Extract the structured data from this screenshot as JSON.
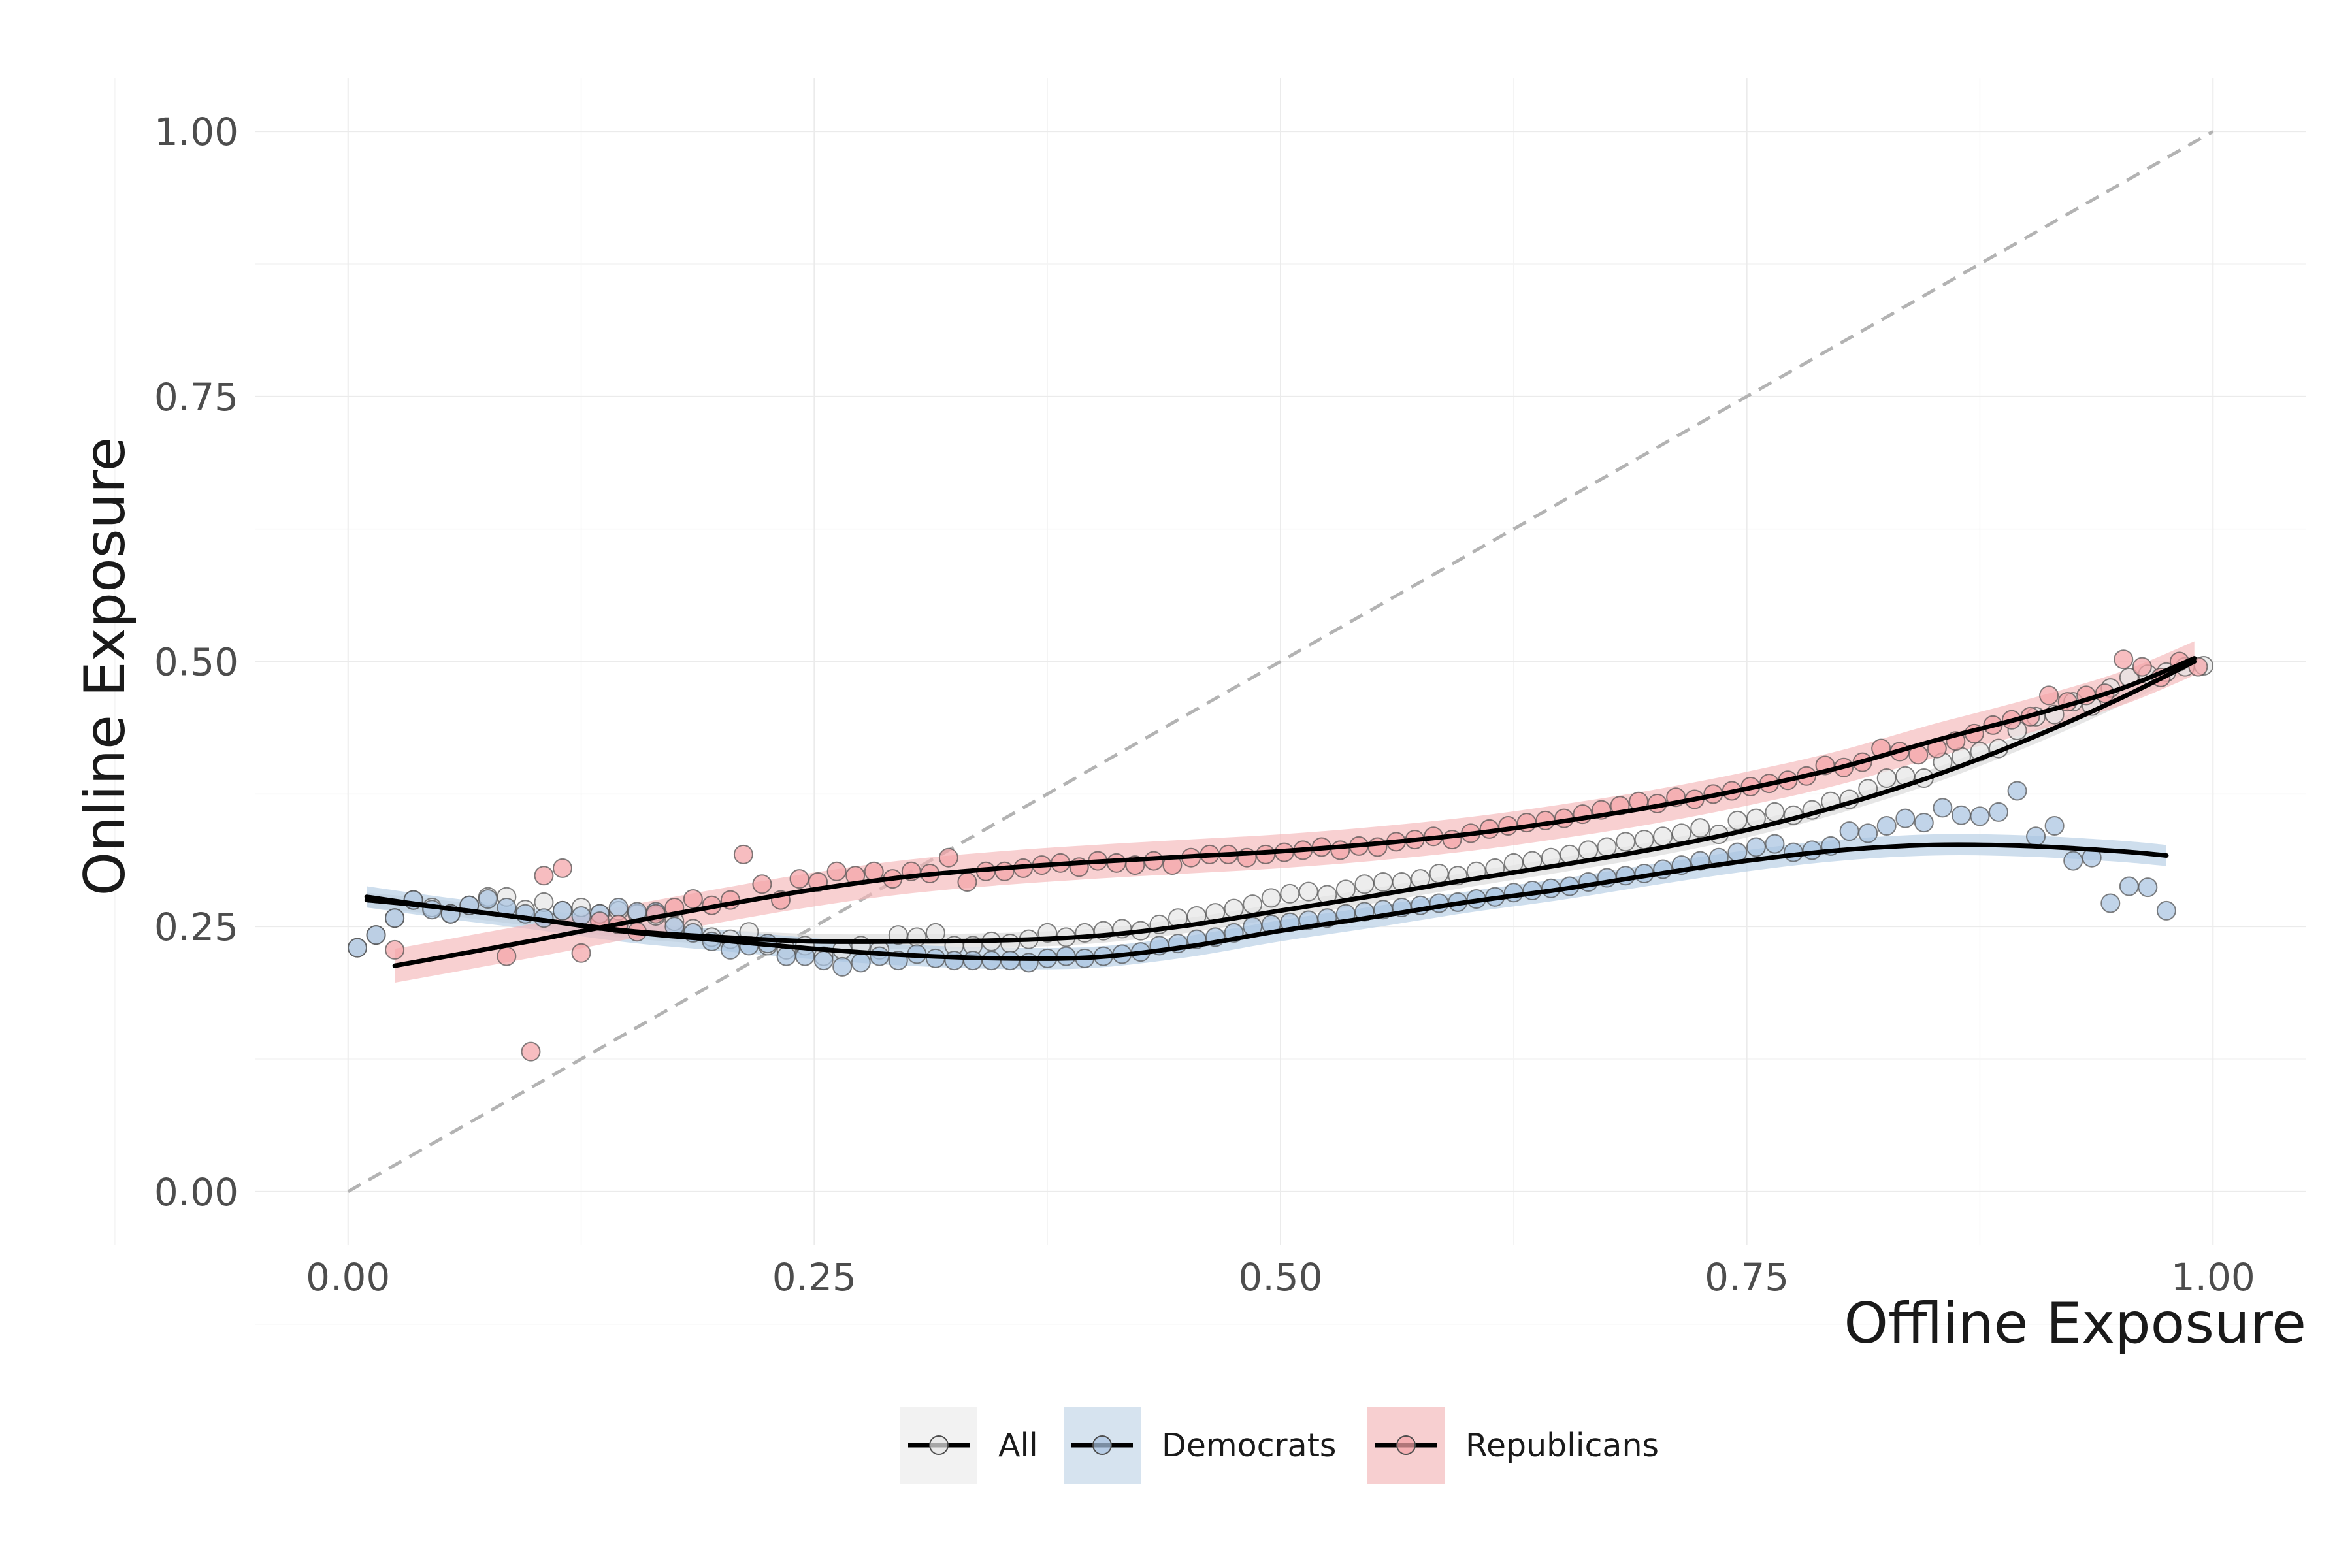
{
  "chart_data": {
    "type": "scatter",
    "xlabel": "Offline Exposure",
    "ylabel": "Online Exposure",
    "xlim": [
      -0.05,
      1.05
    ],
    "ylim": [
      -0.05,
      1.05
    ],
    "x_ticks": [
      "0.00",
      "0.25",
      "0.50",
      "0.75",
      "1.00"
    ],
    "y_ticks": [
      "0.00",
      "0.25",
      "0.50",
      "0.75",
      "1.00"
    ],
    "grid": true,
    "legend_position": "bottom",
    "reference_line": {
      "type": "diagonal",
      "style": "dashed",
      "color": "#b3b3b3",
      "from": [
        0,
        0
      ],
      "to": [
        1,
        1
      ]
    },
    "series": [
      {
        "name": "All",
        "fill": "#e6e6e6",
        "legend_bg": "#f2f2f2",
        "band": "#d9d9d9",
        "x": [
          0.005,
          0.015,
          0.025,
          0.035,
          0.045,
          0.055,
          0.065,
          0.075,
          0.085,
          0.095,
          0.105,
          0.115,
          0.125,
          0.135,
          0.145,
          0.155,
          0.165,
          0.175,
          0.185,
          0.195,
          0.205,
          0.215,
          0.225,
          0.235,
          0.245,
          0.255,
          0.265,
          0.275,
          0.285,
          0.295,
          0.305,
          0.315,
          0.325,
          0.335,
          0.345,
          0.355,
          0.365,
          0.375,
          0.385,
          0.395,
          0.405,
          0.415,
          0.425,
          0.435,
          0.445,
          0.455,
          0.465,
          0.475,
          0.485,
          0.495,
          0.505,
          0.515,
          0.525,
          0.535,
          0.545,
          0.555,
          0.565,
          0.575,
          0.585,
          0.595,
          0.605,
          0.615,
          0.625,
          0.635,
          0.645,
          0.655,
          0.665,
          0.675,
          0.685,
          0.695,
          0.705,
          0.715,
          0.725,
          0.735,
          0.745,
          0.755,
          0.765,
          0.775,
          0.785,
          0.795,
          0.805,
          0.815,
          0.825,
          0.835,
          0.845,
          0.855,
          0.865,
          0.875,
          0.885,
          0.895,
          0.905,
          0.915,
          0.925,
          0.935,
          0.945,
          0.955,
          0.965,
          0.975,
          0.985,
          0.995
        ],
        "y": [
          0.23,
          0.242,
          0.258,
          0.275,
          0.268,
          0.262,
          0.27,
          0.278,
          0.278,
          0.266,
          0.273,
          0.265,
          0.268,
          0.262,
          0.265,
          0.262,
          0.26,
          0.255,
          0.248,
          0.24,
          0.238,
          0.245,
          0.232,
          0.228,
          0.232,
          0.222,
          0.228,
          0.232,
          0.228,
          0.242,
          0.24,
          0.244,
          0.232,
          0.232,
          0.236,
          0.234,
          0.238,
          0.244,
          0.24,
          0.244,
          0.246,
          0.248,
          0.246,
          0.252,
          0.258,
          0.26,
          0.263,
          0.267,
          0.271,
          0.277,
          0.281,
          0.283,
          0.28,
          0.285,
          0.29,
          0.292,
          0.292,
          0.295,
          0.3,
          0.298,
          0.302,
          0.305,
          0.31,
          0.312,
          0.315,
          0.318,
          0.322,
          0.325,
          0.33,
          0.332,
          0.335,
          0.338,
          0.343,
          0.337,
          0.35,
          0.352,
          0.358,
          0.355,
          0.36,
          0.368,
          0.37,
          0.38,
          0.39,
          0.392,
          0.39,
          0.405,
          0.41,
          0.415,
          0.418,
          0.435,
          0.448,
          0.45,
          0.462,
          0.458,
          0.475,
          0.485,
          0.488,
          0.49,
          0.495,
          0.496
        ],
        "fit_x": [
          0.01,
          0.05,
          0.1,
          0.15,
          0.2,
          0.25,
          0.3,
          0.35,
          0.4,
          0.45,
          0.5,
          0.55,
          0.6,
          0.65,
          0.7,
          0.75,
          0.8,
          0.85,
          0.9,
          0.95,
          0.99
        ],
        "fit_y": [
          0.275,
          0.268,
          0.257,
          0.246,
          0.24,
          0.236,
          0.236,
          0.237,
          0.241,
          0.251,
          0.265,
          0.279,
          0.294,
          0.308,
          0.323,
          0.341,
          0.364,
          0.392,
          0.426,
          0.465,
          0.5
        ],
        "band_width": 0.007
      },
      {
        "name": "Democrats",
        "fill": "#a9c4e0",
        "legend_bg": "#d6e3ef",
        "band": "#b3cde3",
        "x": [
          0.005,
          0.015,
          0.025,
          0.035,
          0.045,
          0.055,
          0.065,
          0.075,
          0.085,
          0.095,
          0.105,
          0.115,
          0.125,
          0.135,
          0.145,
          0.155,
          0.165,
          0.175,
          0.185,
          0.195,
          0.205,
          0.215,
          0.225,
          0.235,
          0.245,
          0.255,
          0.265,
          0.275,
          0.285,
          0.295,
          0.305,
          0.315,
          0.325,
          0.335,
          0.345,
          0.355,
          0.365,
          0.375,
          0.385,
          0.395,
          0.405,
          0.415,
          0.425,
          0.435,
          0.445,
          0.455,
          0.465,
          0.475,
          0.485,
          0.495,
          0.505,
          0.515,
          0.525,
          0.535,
          0.545,
          0.555,
          0.565,
          0.575,
          0.585,
          0.595,
          0.605,
          0.615,
          0.625,
          0.635,
          0.645,
          0.655,
          0.665,
          0.675,
          0.685,
          0.695,
          0.705,
          0.715,
          0.725,
          0.735,
          0.745,
          0.755,
          0.765,
          0.775,
          0.785,
          0.795,
          0.805,
          0.815,
          0.825,
          0.835,
          0.845,
          0.855,
          0.865,
          0.875,
          0.885,
          0.895,
          0.905,
          0.915,
          0.925,
          0.935,
          0.945,
          0.955,
          0.965,
          0.975
        ],
        "y": [
          0.23,
          0.242,
          0.258,
          0.275,
          0.266,
          0.262,
          0.27,
          0.276,
          0.268,
          0.262,
          0.258,
          0.265,
          0.26,
          0.262,
          0.268,
          0.264,
          0.264,
          0.25,
          0.244,
          0.236,
          0.228,
          0.232,
          0.234,
          0.222,
          0.222,
          0.218,
          0.212,
          0.216,
          0.222,
          0.218,
          0.224,
          0.22,
          0.218,
          0.218,
          0.218,
          0.218,
          0.216,
          0.22,
          0.222,
          0.22,
          0.222,
          0.224,
          0.226,
          0.232,
          0.234,
          0.238,
          0.24,
          0.244,
          0.25,
          0.252,
          0.254,
          0.256,
          0.258,
          0.262,
          0.264,
          0.266,
          0.268,
          0.27,
          0.272,
          0.273,
          0.276,
          0.278,
          0.282,
          0.284,
          0.286,
          0.288,
          0.292,
          0.296,
          0.298,
          0.3,
          0.304,
          0.308,
          0.312,
          0.315,
          0.32,
          0.325,
          0.328,
          0.32,
          0.322,
          0.326,
          0.34,
          0.338,
          0.345,
          0.352,
          0.348,
          0.362,
          0.355,
          0.354,
          0.358,
          0.378,
          0.335,
          0.345,
          0.312,
          0.315,
          0.272,
          0.288,
          0.287,
          0.265
        ],
        "fit_x": [
          0.01,
          0.05,
          0.1,
          0.15,
          0.2,
          0.25,
          0.3,
          0.35,
          0.4,
          0.45,
          0.5,
          0.55,
          0.6,
          0.65,
          0.7,
          0.75,
          0.8,
          0.85,
          0.9,
          0.95,
          0.975
        ],
        "fit_y": [
          0.278,
          0.268,
          0.257,
          0.245,
          0.237,
          0.229,
          0.223,
          0.22,
          0.221,
          0.231,
          0.246,
          0.259,
          0.273,
          0.285,
          0.299,
          0.312,
          0.322,
          0.327,
          0.326,
          0.321,
          0.317
        ],
        "band_width": 0.01
      },
      {
        "name": "Republicans",
        "fill": "#f4a3a8",
        "legend_bg": "#f7cfd0",
        "band": "#f5b7b9",
        "x": [
          0.025,
          0.085,
          0.098,
          0.105,
          0.115,
          0.125,
          0.135,
          0.145,
          0.155,
          0.165,
          0.175,
          0.185,
          0.195,
          0.205,
          0.212,
          0.222,
          0.232,
          0.242,
          0.252,
          0.262,
          0.272,
          0.282,
          0.292,
          0.302,
          0.312,
          0.322,
          0.332,
          0.342,
          0.352,
          0.362,
          0.372,
          0.382,
          0.392,
          0.402,
          0.412,
          0.422,
          0.432,
          0.442,
          0.452,
          0.462,
          0.472,
          0.482,
          0.492,
          0.502,
          0.512,
          0.522,
          0.532,
          0.542,
          0.552,
          0.562,
          0.572,
          0.582,
          0.592,
          0.602,
          0.612,
          0.622,
          0.632,
          0.642,
          0.652,
          0.662,
          0.672,
          0.682,
          0.692,
          0.702,
          0.712,
          0.722,
          0.732,
          0.742,
          0.752,
          0.762,
          0.772,
          0.782,
          0.792,
          0.802,
          0.812,
          0.822,
          0.832,
          0.842,
          0.852,
          0.862,
          0.872,
          0.882,
          0.892,
          0.902,
          0.912,
          0.922,
          0.932,
          0.942,
          0.952,
          0.962,
          0.972,
          0.982,
          0.992
        ],
        "y": [
          0.228,
          0.222,
          0.132,
          0.298,
          0.305,
          0.225,
          0.255,
          0.252,
          0.245,
          0.262,
          0.268,
          0.276,
          0.27,
          0.275,
          0.318,
          0.29,
          0.275,
          0.295,
          0.292,
          0.302,
          0.298,
          0.302,
          0.295,
          0.302,
          0.3,
          0.315,
          0.292,
          0.302,
          0.302,
          0.305,
          0.308,
          0.31,
          0.306,
          0.312,
          0.31,
          0.308,
          0.312,
          0.308,
          0.315,
          0.318,
          0.318,
          0.315,
          0.318,
          0.32,
          0.322,
          0.325,
          0.322,
          0.326,
          0.325,
          0.33,
          0.332,
          0.335,
          0.332,
          0.338,
          0.342,
          0.345,
          0.348,
          0.35,
          0.352,
          0.356,
          0.36,
          0.364,
          0.368,
          0.366,
          0.372,
          0.37,
          0.375,
          0.378,
          0.382,
          0.385,
          0.388,
          0.392,
          0.402,
          0.4,
          0.405,
          0.418,
          0.415,
          0.412,
          0.418,
          0.425,
          0.432,
          0.44,
          0.445,
          0.448,
          0.468,
          0.462,
          0.468,
          0.47,
          0.502,
          0.495,
          0.485,
          0.5,
          0.495
        ],
        "fit_x": [
          0.025,
          0.1,
          0.15,
          0.2,
          0.25,
          0.3,
          0.35,
          0.4,
          0.45,
          0.5,
          0.55,
          0.6,
          0.65,
          0.7,
          0.75,
          0.8,
          0.85,
          0.9,
          0.95,
          0.99
        ],
        "fit_y": [
          0.213,
          0.237,
          0.254,
          0.27,
          0.285,
          0.297,
          0.305,
          0.311,
          0.316,
          0.321,
          0.328,
          0.337,
          0.349,
          0.363,
          0.38,
          0.4,
          0.425,
          0.448,
          0.474,
          0.503
        ],
        "band_width": 0.016
      }
    ]
  }
}
